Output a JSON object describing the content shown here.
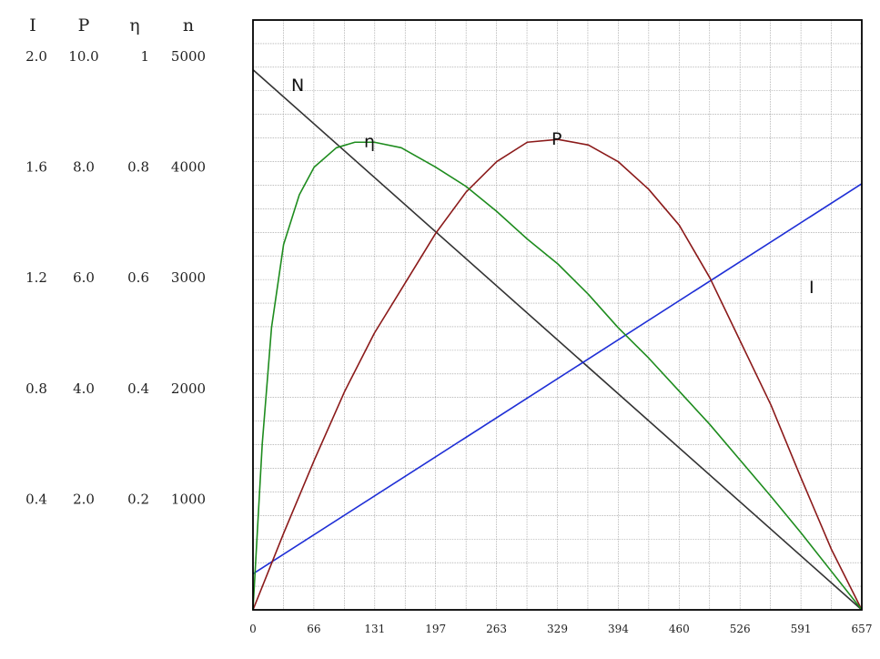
{
  "chart_data": {
    "type": "line",
    "title": "",
    "xlabel": "",
    "ylabel": "",
    "grid": true,
    "xlim": [
      0,
      657
    ],
    "x_ticks": [
      "0",
      "66",
      "131",
      "197",
      "263",
      "329",
      "394",
      "460",
      "526",
      "591",
      "657"
    ],
    "y_axes": [
      {
        "header": "I",
        "ticks": [
          "2.0",
          "1.6",
          "1.2",
          "0.8",
          "0.4"
        ],
        "range": [
          0,
          2.0
        ]
      },
      {
        "header": "P",
        "ticks": [
          "10.0",
          "8.0",
          "6.0",
          "4.0",
          "2.0"
        ],
        "range": [
          0,
          10.0
        ]
      },
      {
        "header": "η",
        "ticks": [
          "1",
          "0.8",
          "0.6",
          "0.4",
          "0.2"
        ],
        "range": [
          0,
          1.0
        ]
      },
      {
        "header": "n",
        "ticks": [
          "5000",
          "4000",
          "3000",
          "2000",
          "1000"
        ],
        "range": [
          0,
          5000
        ]
      }
    ],
    "series": [
      {
        "name": "N",
        "axis": "n",
        "color": "#333333",
        "x": [
          0,
          657
        ],
        "y": [
          4880,
          0
        ]
      },
      {
        "name": "I",
        "axis": "I",
        "color": "#1f2fd6",
        "x": [
          0,
          657
        ],
        "y": [
          0.13,
          1.54
        ]
      },
      {
        "name": "P",
        "axis": "P",
        "color": "#8b1a1a",
        "x": [
          0,
          33,
          66,
          99,
          131,
          164,
          197,
          230,
          263,
          296,
          329,
          362,
          394,
          427,
          460,
          493,
          526,
          559,
          591,
          624,
          657
        ],
        "y": [
          0,
          1.38,
          2.7,
          3.95,
          5.0,
          5.9,
          6.8,
          7.55,
          8.1,
          8.45,
          8.5,
          8.4,
          8.1,
          7.6,
          6.95,
          6.0,
          4.85,
          3.7,
          2.4,
          1.1,
          0
        ]
      },
      {
        "name": "η",
        "axis": "η",
        "color": "#1e8c1e",
        "x": [
          0,
          10,
          20,
          33,
          50,
          66,
          90,
          110,
          131,
          160,
          197,
          230,
          263,
          296,
          329,
          362,
          394,
          427,
          460,
          493,
          526,
          559,
          591,
          624,
          657
        ],
        "y": [
          0,
          0.3,
          0.51,
          0.66,
          0.75,
          0.8,
          0.835,
          0.845,
          0.845,
          0.835,
          0.8,
          0.765,
          0.72,
          0.67,
          0.625,
          0.57,
          0.51,
          0.455,
          0.395,
          0.335,
          0.27,
          0.205,
          0.14,
          0.07,
          0
        ]
      }
    ]
  }
}
